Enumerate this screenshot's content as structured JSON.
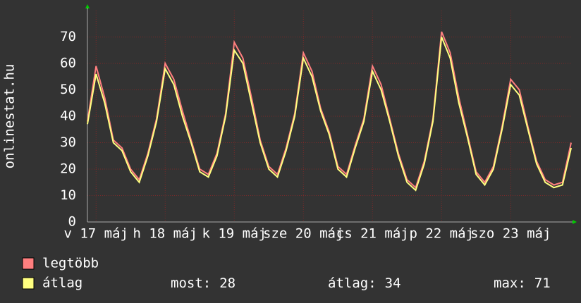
{
  "chart_data": {
    "type": "line",
    "ylabel": "onlinestat.hu",
    "xlim": [
      0,
      168
    ],
    "ylim": [
      0,
      80
    ],
    "yticks": [
      0,
      10,
      20,
      30,
      40,
      50,
      60,
      70
    ],
    "xticks": [
      {
        "value": 3,
        "label": "v 17 máj"
      },
      {
        "value": 27,
        "label": "h 18 máj"
      },
      {
        "value": 51,
        "label": "k 19 máj"
      },
      {
        "value": 75,
        "label": "sze 20 máj"
      },
      {
        "value": 99,
        "label": "cs 21 máj"
      },
      {
        "value": 123,
        "label": "p 22 máj"
      },
      {
        "value": 147,
        "label": "szo 23 máj"
      }
    ],
    "grid": true,
    "x": [
      0,
      3,
      6,
      9,
      12,
      15,
      18,
      21,
      24,
      27,
      30,
      33,
      36,
      39,
      42,
      45,
      48,
      51,
      54,
      57,
      60,
      63,
      66,
      69,
      72,
      75,
      78,
      81,
      84,
      87,
      90,
      93,
      96,
      99,
      102,
      105,
      108,
      111,
      114,
      117,
      120,
      123,
      126,
      129,
      132,
      135,
      138,
      141,
      144,
      147,
      150,
      153,
      156,
      159,
      162,
      165,
      168
    ],
    "series": [
      {
        "name": "legtöbb",
        "color": "#ff7f7f",
        "values": [
          38,
          59,
          47,
          31,
          28,
          20,
          16,
          26,
          39,
          60,
          54,
          42,
          31,
          20,
          18,
          26,
          41,
          68,
          62,
          47,
          31,
          21,
          18,
          28,
          41,
          64,
          57,
          43,
          34,
          21,
          18,
          29,
          39,
          59,
          52,
          39,
          26,
          16,
          13,
          23,
          39,
          72,
          64,
          47,
          33,
          19,
          15,
          21,
          36,
          54,
          50,
          36,
          23,
          16,
          14,
          15,
          30
        ]
      },
      {
        "name": "átlag",
        "color": "#ffff80",
        "values": [
          37,
          56,
          45,
          30,
          27,
          19,
          15,
          25,
          38,
          58,
          52,
          40,
          30,
          19,
          17,
          25,
          40,
          65,
          60,
          45,
          30,
          20,
          17,
          27,
          40,
          62,
          55,
          42,
          33,
          20,
          17,
          28,
          38,
          57,
          50,
          38,
          25,
          15,
          12,
          22,
          38,
          70,
          62,
          45,
          32,
          18,
          14,
          20,
          35,
          52,
          48,
          35,
          22,
          15,
          13,
          14,
          28
        ]
      }
    ],
    "stats": [
      {
        "label": "most:",
        "value": 28
      },
      {
        "label": "átlag:",
        "value": 34
      },
      {
        "label": "max:",
        "value": 71
      }
    ]
  }
}
